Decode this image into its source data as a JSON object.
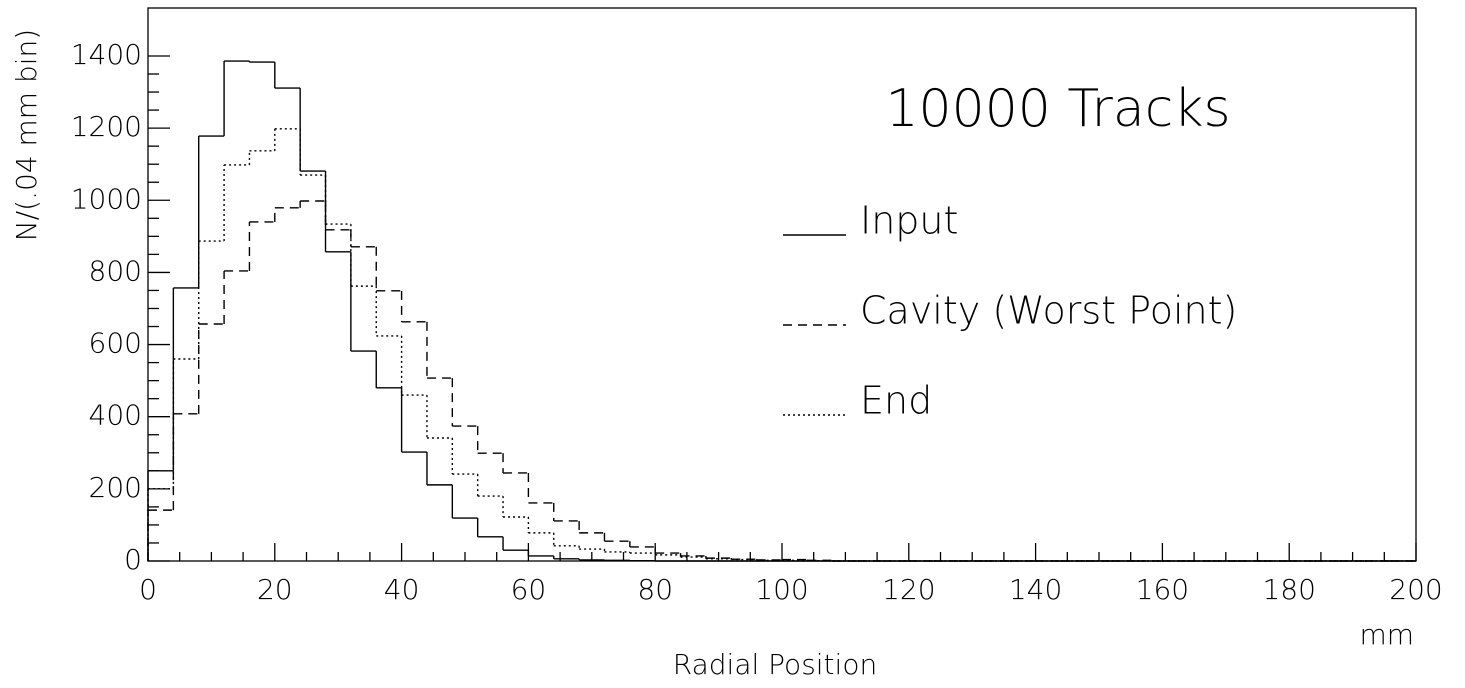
{
  "chart_data": {
    "type": "histogram",
    "annotation": "10000 Tracks",
    "x_label": "Radial Position",
    "x_unit": "mm",
    "y_label": "N/(.04 mm bin)",
    "bins": [
      0,
      4,
      8,
      12,
      16,
      20,
      24,
      28,
      32,
      36,
      40,
      44,
      48,
      52,
      56,
      60,
      64,
      68,
      72,
      76,
      80,
      84,
      88,
      92,
      96,
      100,
      104,
      108,
      112,
      116,
      120,
      124,
      128,
      132,
      136,
      140,
      144,
      148,
      152,
      156,
      160,
      164,
      168,
      172,
      176,
      180,
      184,
      188,
      192,
      196,
      200
    ],
    "series": [
      {
        "name": "Input",
        "color": "#000000",
        "line_style": "solid",
        "values": [
          250,
          757,
          1178,
          1386,
          1383,
          1311,
          1081,
          857,
          582,
          480,
          302,
          211,
          119,
          67,
          30,
          14,
          6,
          3,
          2,
          1,
          0,
          0,
          0,
          0,
          0,
          0,
          0,
          0,
          0,
          0,
          0,
          0,
          0,
          0,
          0,
          0,
          0,
          0,
          0,
          0,
          0,
          0,
          0,
          0,
          0,
          0,
          0,
          0,
          0,
          0
        ]
      },
      {
        "name": "Cavity (Worst Point)",
        "color": "#000000",
        "line_style": "dashed",
        "values": [
          141,
          408,
          657,
          804,
          940,
          979,
          998,
          918,
          871,
          749,
          663,
          507,
          374,
          299,
          244,
          161,
          111,
          78,
          55,
          39,
          22,
          14,
          8,
          5,
          3,
          4,
          2,
          0,
          0,
          0,
          0,
          0,
          0,
          0,
          0,
          0,
          0,
          0,
          0,
          0,
          0,
          0,
          0,
          0,
          0,
          0,
          0,
          0,
          0,
          0
        ]
      },
      {
        "name": "End",
        "color": "#000000",
        "line_style": "dotted",
        "values": [
          200,
          560,
          887,
          1098,
          1137,
          1198,
          1070,
          934,
          762,
          624,
          460,
          341,
          241,
          180,
          122,
          78,
          42,
          33,
          25,
          22,
          17,
          11,
          6,
          4,
          2,
          2,
          1,
          0,
          0,
          0,
          0,
          0,
          0,
          0,
          0,
          0,
          0,
          0,
          0,
          0,
          0,
          0,
          0,
          0,
          0,
          0,
          0,
          0,
          0,
          0
        ]
      }
    ],
    "xlim": [
      0,
      200
    ],
    "ylim": [
      0,
      1533
    ],
    "xticks": [
      0,
      20,
      40,
      60,
      80,
      100,
      120,
      140,
      160,
      180,
      200
    ],
    "yticks": [
      0,
      200,
      400,
      600,
      800,
      1000,
      1200,
      1400
    ]
  }
}
